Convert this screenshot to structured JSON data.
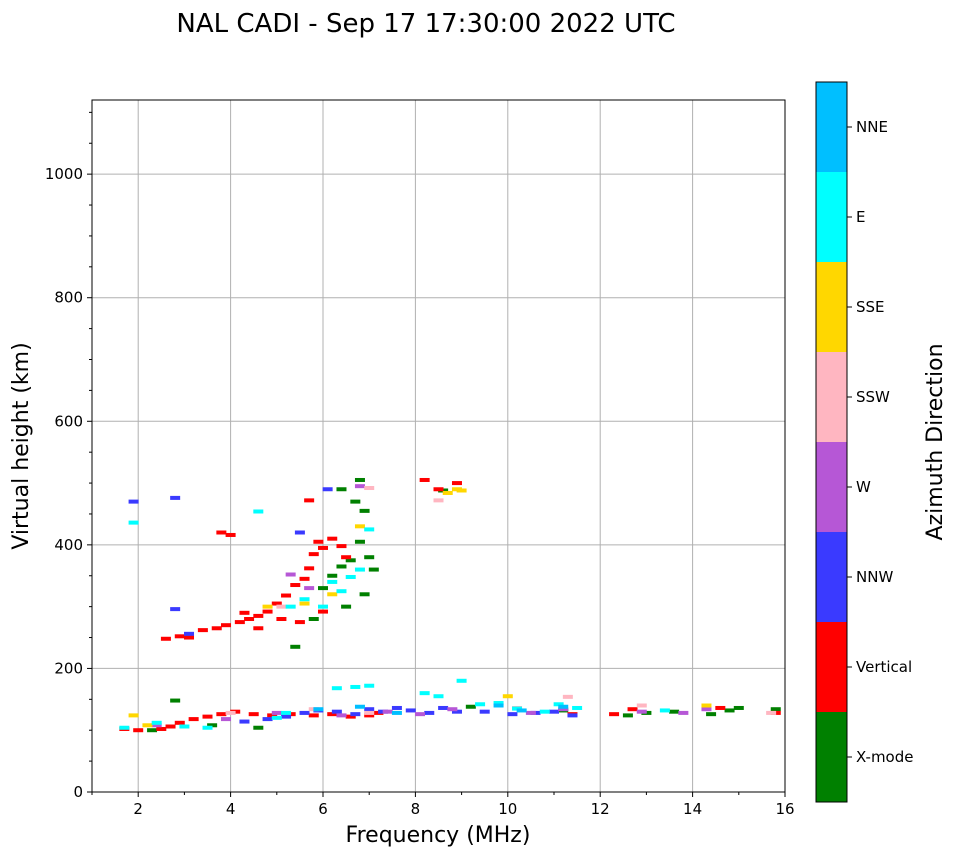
{
  "chart_data": {
    "type": "scatter",
    "title": "NAL CADI - Sep 17 17:30:00 2022 UTC",
    "xlabel": "Frequency (MHz)",
    "ylabel": "Virtual height (km)",
    "xlim": [
      1,
      16
    ],
    "ylim": [
      0,
      1120
    ],
    "xticks": [
      2,
      4,
      6,
      8,
      10,
      12,
      14,
      16
    ],
    "yticks": [
      0,
      200,
      400,
      600,
      800,
      1000
    ],
    "grid": true,
    "colorbar": {
      "label": "Azimuth Direction",
      "categories": [
        "X-mode",
        "Vertical",
        "NNW",
        "W",
        "SSW",
        "SSE",
        "E",
        "NNE"
      ],
      "colors": [
        "#008000",
        "#ff0000",
        "#3a3aff",
        "#b657d6",
        "#ffb6c1",
        "#ffd700",
        "#00ffff",
        "#00bfff"
      ]
    },
    "series": [
      {
        "name": "X-mode",
        "points": [
          [
            2.8,
            148
          ],
          [
            5.4,
            235
          ],
          [
            5.8,
            280
          ],
          [
            6.0,
            330
          ],
          [
            6.2,
            350
          ],
          [
            6.4,
            365
          ],
          [
            6.6,
            375
          ],
          [
            6.8,
            405
          ],
          [
            7.0,
            380
          ],
          [
            7.1,
            360
          ],
          [
            6.5,
            300
          ],
          [
            6.9,
            320
          ],
          [
            6.8,
            505
          ],
          [
            6.4,
            490
          ],
          [
            6.7,
            470
          ],
          [
            6.9,
            455
          ],
          [
            8.6,
            488
          ],
          [
            9.2,
            138
          ],
          [
            11.2,
            132
          ],
          [
            12.6,
            124
          ],
          [
            13.0,
            128
          ],
          [
            13.6,
            130
          ],
          [
            14.4,
            126
          ],
          [
            14.8,
            132
          ],
          [
            15.0,
            136
          ],
          [
            15.8,
            134
          ],
          [
            4.6,
            104
          ],
          [
            3.6,
            108
          ],
          [
            2.3,
            100
          ]
        ]
      },
      {
        "name": "Vertical",
        "points": [
          [
            1.7,
            102
          ],
          [
            2.0,
            100
          ],
          [
            2.5,
            102
          ],
          [
            2.7,
            106
          ],
          [
            2.9,
            112
          ],
          [
            3.2,
            118
          ],
          [
            3.5,
            122
          ],
          [
            3.8,
            126
          ],
          [
            4.1,
            130
          ],
          [
            4.5,
            126
          ],
          [
            4.9,
            124
          ],
          [
            5.3,
            126
          ],
          [
            5.8,
            124
          ],
          [
            6.2,
            126
          ],
          [
            6.6,
            122
          ],
          [
            7.0,
            124
          ],
          [
            7.2,
            128
          ],
          [
            11.4,
            126
          ],
          [
            12.3,
            126
          ],
          [
            12.7,
            134
          ],
          [
            14.6,
            136
          ],
          [
            15.8,
            128
          ],
          [
            2.6,
            248
          ],
          [
            2.9,
            252
          ],
          [
            3.1,
            250
          ],
          [
            3.4,
            262
          ],
          [
            3.7,
            265
          ],
          [
            3.9,
            270
          ],
          [
            4.2,
            275
          ],
          [
            4.4,
            280
          ],
          [
            4.6,
            285
          ],
          [
            4.8,
            292
          ],
          [
            5.0,
            305
          ],
          [
            5.2,
            318
          ],
          [
            5.4,
            335
          ],
          [
            5.6,
            345
          ],
          [
            5.7,
            362
          ],
          [
            5.8,
            385
          ],
          [
            5.9,
            405
          ],
          [
            6.0,
            395
          ],
          [
            6.2,
            410
          ],
          [
            6.4,
            398
          ],
          [
            6.5,
            380
          ],
          [
            5.1,
            280
          ],
          [
            5.5,
            275
          ],
          [
            4.3,
            290
          ],
          [
            3.8,
            420
          ],
          [
            4.0,
            416
          ],
          [
            5.7,
            472
          ],
          [
            8.2,
            505
          ],
          [
            8.5,
            490
          ],
          [
            8.9,
            500
          ],
          [
            6.0,
            292
          ],
          [
            4.6,
            265
          ]
        ]
      },
      {
        "name": "NNW",
        "points": [
          [
            1.9,
            470
          ],
          [
            2.8,
            296
          ],
          [
            2.8,
            476
          ],
          [
            3.1,
            256
          ],
          [
            4.3,
            114
          ],
          [
            4.8,
            118
          ],
          [
            5.2,
            122
          ],
          [
            5.6,
            128
          ],
          [
            5.9,
            132
          ],
          [
            6.3,
            130
          ],
          [
            6.7,
            126
          ],
          [
            7.0,
            134
          ],
          [
            7.3,
            130
          ],
          [
            7.6,
            136
          ],
          [
            7.9,
            132
          ],
          [
            8.3,
            128
          ],
          [
            8.6,
            136
          ],
          [
            8.9,
            130
          ],
          [
            9.5,
            130
          ],
          [
            10.1,
            126
          ],
          [
            10.6,
            128
          ],
          [
            11.0,
            130
          ],
          [
            11.4,
            124
          ],
          [
            6.1,
            490
          ],
          [
            5.5,
            420
          ]
        ]
      },
      {
        "name": "W",
        "points": [
          [
            2.4,
            108
          ],
          [
            3.9,
            118
          ],
          [
            5.0,
            128
          ],
          [
            6.4,
            124
          ],
          [
            7.4,
            130
          ],
          [
            8.1,
            126
          ],
          [
            8.8,
            134
          ],
          [
            10.5,
            128
          ],
          [
            11.2,
            134
          ],
          [
            12.9,
            130
          ],
          [
            13.8,
            128
          ],
          [
            14.3,
            134
          ],
          [
            5.3,
            352
          ],
          [
            5.7,
            330
          ],
          [
            6.8,
            495
          ]
        ]
      },
      {
        "name": "SSW",
        "points": [
          [
            4.0,
            128
          ],
          [
            5.8,
            134
          ],
          [
            7.0,
            128
          ],
          [
            8.5,
            472
          ],
          [
            10.2,
            136
          ],
          [
            11.3,
            154
          ],
          [
            12.9,
            140
          ],
          [
            15.7,
            128
          ],
          [
            5.1,
            300
          ],
          [
            7.0,
            492
          ]
        ]
      },
      {
        "name": "SSE",
        "points": [
          [
            1.9,
            124
          ],
          [
            2.2,
            108
          ],
          [
            8.7,
            484
          ],
          [
            8.9,
            490
          ],
          [
            9.0,
            488
          ],
          [
            10.0,
            155
          ],
          [
            14.3,
            140
          ],
          [
            5.6,
            305
          ],
          [
            6.2,
            320
          ],
          [
            4.8,
            300
          ],
          [
            6.8,
            430
          ]
        ]
      },
      {
        "name": "E",
        "points": [
          [
            1.7,
            104
          ],
          [
            1.9,
            436
          ],
          [
            2.4,
            112
          ],
          [
            3.5,
            104
          ],
          [
            4.6,
            454
          ],
          [
            5.0,
            120
          ],
          [
            5.3,
            300
          ],
          [
            5.6,
            312
          ],
          [
            6.0,
            300
          ],
          [
            6.2,
            340
          ],
          [
            6.4,
            325
          ],
          [
            6.6,
            348
          ],
          [
            6.8,
            360
          ],
          [
            7.0,
            425
          ],
          [
            6.7,
            170
          ],
          [
            7.0,
            172
          ],
          [
            6.3,
            168
          ],
          [
            8.2,
            160
          ],
          [
            8.5,
            155
          ],
          [
            9.0,
            180
          ],
          [
            9.4,
            142
          ],
          [
            9.8,
            144
          ],
          [
            10.2,
            135
          ],
          [
            10.8,
            130
          ],
          [
            11.1,
            142
          ],
          [
            11.5,
            136
          ],
          [
            13.4,
            132
          ],
          [
            3.0,
            106
          ],
          [
            5.2,
            128
          ]
        ]
      },
      {
        "name": "NNE",
        "points": [
          [
            5.9,
            134
          ],
          [
            6.8,
            138
          ],
          [
            7.6,
            128
          ],
          [
            9.8,
            140
          ],
          [
            10.3,
            132
          ],
          [
            11.2,
            138
          ]
        ]
      }
    ]
  }
}
